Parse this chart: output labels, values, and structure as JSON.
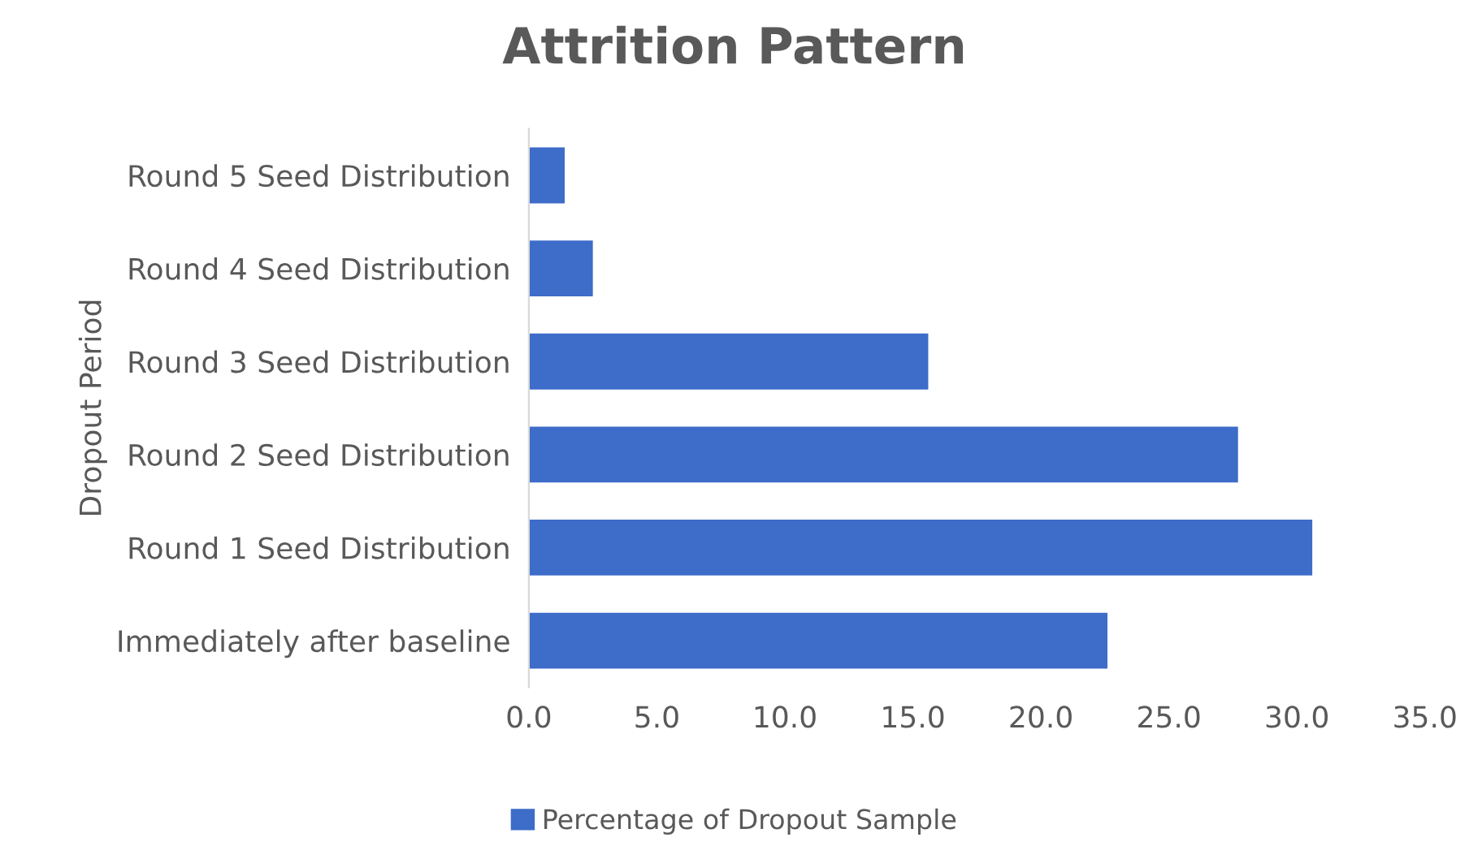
{
  "chart_data": {
    "type": "bar",
    "orientation": "horizontal",
    "title": "Attrition Pattern",
    "ylabel": "Dropout Period",
    "categories": [
      "Round 5 Seed Distribution",
      "Round 4 Seed Distribution",
      "Round 3 Seed Distribution",
      "Round 2 Seed Distribution",
      "Round 1 Seed Distribution",
      "Immediately after baseline"
    ],
    "series": [
      {
        "name": "Percentage of Dropout Sample",
        "color": "#3d6cc9",
        "values": [
          1.4,
          2.5,
          15.6,
          27.7,
          30.6,
          22.6
        ]
      }
    ],
    "xlim": [
      0,
      35
    ],
    "xticks": [
      {
        "value": 0,
        "label": "0.0"
      },
      {
        "value": 5,
        "label": "5.0"
      },
      {
        "value": 10,
        "label": "10.0"
      },
      {
        "value": 15,
        "label": "15.0"
      },
      {
        "value": 20,
        "label": "20.0"
      },
      {
        "value": 25,
        "label": "25.0"
      },
      {
        "value": 30,
        "label": "30.0"
      },
      {
        "value": 35,
        "label": "35.0"
      }
    ],
    "grid": false,
    "legend": "bottom"
  }
}
